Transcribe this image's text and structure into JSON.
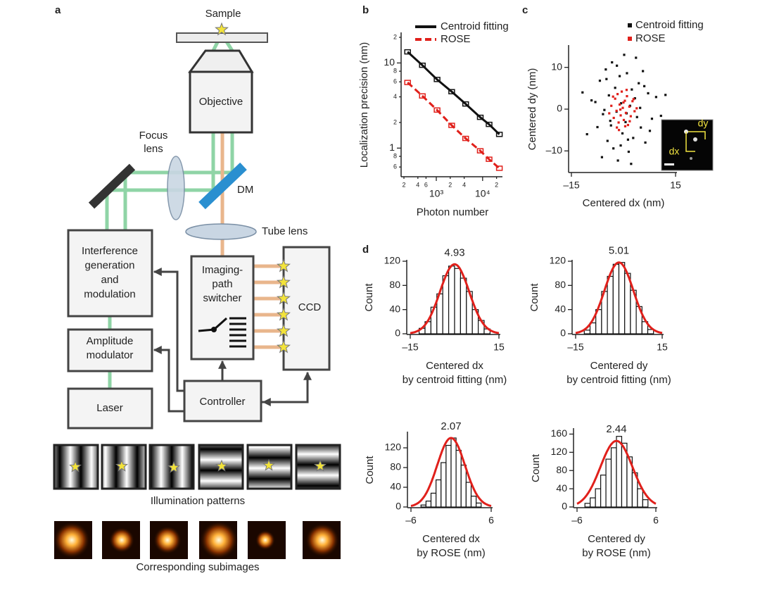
{
  "diagram": {
    "panel_label": "a",
    "sample": "Sample",
    "objective": "Objective",
    "focus_lens": [
      "Focus",
      "lens"
    ],
    "dm": "DM",
    "tube_lens": "Tube lens",
    "interference": [
      "Interference",
      "generation",
      "and",
      "modulation"
    ],
    "amplitude": [
      "Amplitude",
      "modulator"
    ],
    "laser": "Laser",
    "switcher": [
      "Imaging-",
      "path",
      "switcher"
    ],
    "ccd": "CCD",
    "controller": "Controller",
    "illumination_caption": "Illumination patterns",
    "subimages_caption": "Corresponding subimages"
  },
  "chart_data": [
    {
      "panel_label": "b",
      "type": "line",
      "xlabel": "Photon number",
      "ylabel": "Localization precision (nm)",
      "xscale": "log",
      "yscale": "log",
      "xlim": [
        200,
        25000
      ],
      "ylim": [
        0.47,
        22
      ],
      "xticks": [
        {
          "value": 200,
          "label": "2"
        },
        {
          "value": 400,
          "label": "4"
        },
        {
          "value": 600,
          "label": "6"
        },
        {
          "value": 1000,
          "label": "10³"
        },
        {
          "value": 2000,
          "label": "2"
        },
        {
          "value": 4000,
          "label": "4"
        },
        {
          "value": 10000,
          "label": "10⁴"
        },
        {
          "value": 20000,
          "label": "2"
        }
      ],
      "yticks": [
        {
          "value": 0.6,
          "label": "6"
        },
        {
          "value": 0.8,
          "label": "8"
        },
        1,
        2,
        4,
        6,
        8,
        10,
        {
          "value": 20,
          "label": "2"
        }
      ],
      "x": [
        240,
        500,
        1040,
        2150,
        4300,
        8900,
        13800,
        23000
      ],
      "series": [
        {
          "name": "Centroid fitting",
          "color": "#111111",
          "dash": false,
          "values": [
            13.5,
            9.4,
            6.4,
            4.6,
            3.3,
            2.3,
            1.9,
            1.45
          ]
        },
        {
          "name": "ROSE",
          "color": "#e0201b",
          "dash": true,
          "values": [
            5.9,
            4.1,
            2.8,
            1.85,
            1.3,
            0.93,
            0.74,
            0.58
          ]
        }
      ]
    },
    {
      "panel_label": "c",
      "type": "scatter",
      "xlabel": "Centered dx (nm)",
      "ylabel": "Centered dy (nm)",
      "xlim": [
        -15,
        15
      ],
      "ylim": [
        -15,
        15
      ],
      "xticks": [
        {
          "value": -15,
          "label": "–15"
        },
        15
      ],
      "yticks": [
        {
          "value": -10,
          "label": "–10"
        },
        0,
        10
      ],
      "inset": {
        "dx": "dx",
        "dy": "dy"
      },
      "series": [
        {
          "name": "Centroid fitting",
          "color": "#111111",
          "x": [
            -9.2,
            -7.5,
            -6.8,
            -5.9,
            -5.1,
            -4.6,
            -4.2,
            -3.8,
            -3.3,
            -2.9,
            -2.4,
            -2.0,
            -1.6,
            -1.1,
            -0.7,
            -0.3,
            0.2,
            0.6,
            1.0,
            1.5,
            1.9,
            2.4,
            2.8,
            3.3,
            3.9,
            4.4,
            5.0,
            5.6,
            6.3,
            7.1,
            8.2,
            -10.5,
            -8.1,
            -6.2,
            -4.9,
            -3.6,
            -1.9,
            -0.8,
            0.9,
            2.2,
            3.6,
            4.8,
            6.0,
            7.6,
            9.4,
            10.8,
            -11.8,
            -5.5,
            1.3,
            12.1
          ],
          "y": [
            2.1,
            -4.3,
            6.8,
            -1.2,
            9.5,
            -7.6,
            3.3,
            -2.8,
            11.2,
            -9.4,
            5.1,
            -0.6,
            -12.3,
            7.9,
            1.4,
            -5.8,
            13.0,
            -3.1,
            8.6,
            -10.2,
            0.8,
            4.7,
            -6.9,
            2.6,
            -1.9,
            6.2,
            -4.4,
            9.1,
            -8.0,
            3.8,
            -2.3,
            -6.0,
            1.7,
            -11.5,
            7.2,
            -3.9,
            10.4,
            -8.7,
            -1.0,
            -13.1,
            12.3,
            0.3,
            5.5,
            -5.2,
            2.9,
            -1.6,
            4.0,
            -0.2,
            -7.3,
            3.4
          ]
        },
        {
          "name": "ROSE",
          "color": "#e0201b",
          "x": [
            -3.5,
            -2.8,
            -2.4,
            -2.0,
            -1.7,
            -1.4,
            -1.1,
            -0.8,
            -0.5,
            -0.2,
            0.1,
            0.4,
            0.7,
            1.0,
            1.3,
            1.7,
            2.1,
            2.6,
            3.2,
            -4.1,
            -3.0,
            -1.9,
            -0.9,
            0.0,
            0.9,
            1.8,
            2.9,
            3.8,
            -1.3,
            0.5
          ],
          "y": [
            0.8,
            -2.1,
            2.5,
            -0.4,
            3.6,
            -3.2,
            1.1,
            -1.5,
            4.2,
            0.3,
            -2.6,
            2.0,
            -0.9,
            3.1,
            -3.8,
            0.6,
            -1.7,
            1.9,
            -0.5,
            -1.0,
            3.0,
            -4.4,
            -0.1,
            1.6,
            4.6,
            -2.9,
            2.4,
            0.2,
            -5.0,
            -4.1
          ]
        }
      ]
    },
    {
      "panel_label": "d",
      "type": "histogram",
      "xlabel": [
        "Centered dx",
        "by centroid fitting (nm)"
      ],
      "ylabel": "Count",
      "xlim": [
        -15,
        15
      ],
      "ylim": [
        0,
        120
      ],
      "xticks": [
        {
          "value": -15,
          "label": "–15"
        },
        15
      ],
      "yticks": [
        0,
        40,
        80,
        120
      ],
      "bar_color": "#ffffff",
      "edge_color": "#111111",
      "bins": [
        -12,
        -10,
        -8,
        -6,
        -4,
        -2,
        0,
        2,
        4,
        6,
        8,
        10,
        12
      ],
      "counts": [
        9,
        20,
        44,
        66,
        96,
        112,
        108,
        92,
        70,
        40,
        22,
        8
      ],
      "fit": {
        "center": 0,
        "sigma": 4.93,
        "peak": 115,
        "color": "#e0201b"
      }
    },
    {
      "type": "histogram",
      "xlabel": [
        "Centered dy",
        "by centroid fitting (nm)"
      ],
      "ylabel": "Count",
      "xlim": [
        -15,
        15
      ],
      "ylim": [
        0,
        120
      ],
      "xticks": [
        {
          "value": -15,
          "label": "–15"
        },
        15
      ],
      "yticks": [
        0,
        40,
        80,
        120
      ],
      "bar_color": "#ffffff",
      "edge_color": "#111111",
      "bins": [
        -12,
        -10,
        -8,
        -6,
        -4,
        -2,
        0,
        2,
        4,
        6,
        8,
        10,
        12
      ],
      "counts": [
        6,
        18,
        40,
        70,
        95,
        115,
        118,
        100,
        72,
        45,
        20,
        7
      ],
      "fit": {
        "center": 0,
        "sigma": 5.01,
        "peak": 118,
        "color": "#e0201b"
      }
    },
    {
      "type": "histogram",
      "xlabel": [
        "Centered dx",
        "by ROSE (nm)"
      ],
      "ylabel": "Count",
      "xlim": [
        -6,
        6
      ],
      "ylim": [
        0,
        150
      ],
      "xticks": [
        {
          "value": -6,
          "label": "–6"
        },
        6
      ],
      "yticks": [
        0,
        40,
        80,
        120
      ],
      "bar_color": "#ffffff",
      "edge_color": "#111111",
      "bins": [
        -4.5,
        -3.75,
        -3,
        -2.25,
        -1.5,
        -0.75,
        0,
        0.75,
        1.5,
        2.25,
        3,
        3.75,
        4.5
      ],
      "counts": [
        4,
        12,
        28,
        55,
        90,
        125,
        140,
        115,
        85,
        50,
        22,
        8
      ],
      "fit": {
        "center": 0,
        "sigma": 2.07,
        "peak": 140,
        "color": "#e0201b"
      }
    },
    {
      "type": "histogram",
      "xlabel": [
        "Centered dy",
        "by ROSE (nm)"
      ],
      "ylabel": "Count",
      "xlim": [
        -6,
        6
      ],
      "ylim": [
        0,
        170
      ],
      "xticks": [
        {
          "value": -6,
          "label": "–6"
        },
        6
      ],
      "yticks": [
        0,
        40,
        80,
        120,
        160
      ],
      "bar_color": "#ffffff",
      "edge_color": "#111111",
      "bins": [
        -4.8,
        -4,
        -3.2,
        -2.4,
        -1.6,
        -0.8,
        0,
        0.8,
        1.6,
        2.4,
        3.2,
        4,
        4.8
      ],
      "counts": [
        8,
        20,
        40,
        70,
        105,
        130,
        155,
        140,
        110,
        75,
        40,
        16
      ],
      "fit": {
        "center": 0,
        "sigma": 2.44,
        "peak": 145,
        "color": "#e0201b"
      }
    }
  ]
}
